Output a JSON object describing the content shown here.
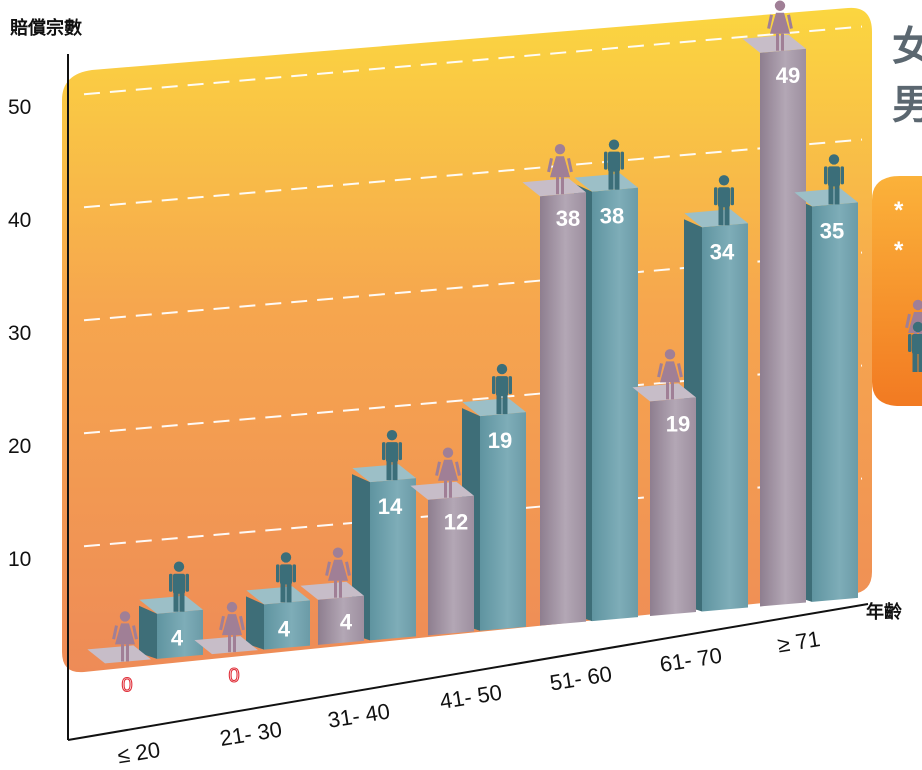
{
  "chart_data": {
    "type": "bar",
    "ylabel": "賠償宗數",
    "xlabel": "年齡",
    "categories": [
      "≤ 20",
      "21- 30",
      "31- 40",
      "41- 50",
      "51- 60",
      "61- 70",
      "≥ 71"
    ],
    "series": [
      {
        "values": [
          0,
          0,
          4,
          12,
          38,
          19,
          49
        ],
        "color": "#a496a6"
      },
      {
        "values": [
          4,
          4,
          14,
          19,
          38,
          34,
          35
        ],
        "color": "#6fa0ac"
      }
    ],
    "yticks": [
      10,
      20,
      30,
      40,
      50
    ],
    "ylim": [
      0,
      55
    ],
    "grid": true,
    "legend": "right",
    "legend_entries": [
      "*",
      "*"
    ]
  },
  "side_panel": {
    "title_line1": "女",
    "title_line2": "男"
  },
  "colors": {
    "backdrop_top": "#fbd23f",
    "backdrop_bottom": "#ef8c56",
    "female_icon": "#a07f96",
    "male_icon": "#3b6e79",
    "legend_panel": "#f7931e"
  },
  "icons": {
    "female": "female-figure-icon",
    "male": "male-figure-icon"
  }
}
